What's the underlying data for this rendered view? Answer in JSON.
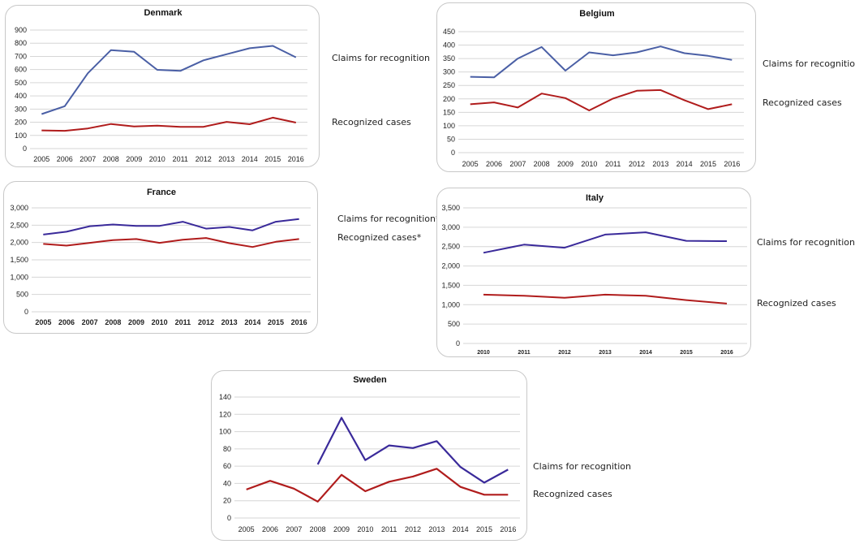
{
  "chart_data": [
    {
      "type": "line",
      "title": "Denmark",
      "x": [
        "2005",
        "2006",
        "2007",
        "2008",
        "2009",
        "2010",
        "2011",
        "2012",
        "2013",
        "2014",
        "2015",
        "2016"
      ],
      "ylim": [
        0,
        900
      ],
      "yticks": [
        "0",
        "100",
        "200",
        "300",
        "400",
        "500",
        "600",
        "700",
        "800",
        "900"
      ],
      "grid": true,
      "series": [
        {
          "name": "Claims for recognition",
          "color": "#4a5fa5",
          "values": [
            262,
            322,
            572,
            748,
            735,
            598,
            590,
            670,
            716,
            762,
            780,
            693
          ]
        },
        {
          "name": "Recognized cases",
          "color": "#b01c1c",
          "values": [
            138,
            135,
            153,
            187,
            168,
            174,
            165,
            165,
            203,
            185,
            235,
            197
          ]
        }
      ]
    },
    {
      "type": "line",
      "title": "Belgium",
      "x": [
        "2005",
        "2006",
        "2007",
        "2008",
        "2009",
        "2010",
        "2011",
        "2012",
        "2013",
        "2014",
        "2015",
        "2016"
      ],
      "ylim": [
        0,
        450
      ],
      "yticks": [
        "0",
        "50",
        "100",
        "150",
        "200",
        "250",
        "300",
        "350",
        "400",
        "450"
      ],
      "grid": true,
      "series": [
        {
          "name": "Claims for recognition",
          "color": "#4a5fa5",
          "values": [
            282,
            280,
            350,
            393,
            305,
            373,
            362,
            373,
            395,
            370,
            360,
            345
          ]
        },
        {
          "name": "Recognized cases",
          "color": "#b01c1c",
          "values": [
            180,
            187,
            168,
            220,
            203,
            157,
            201,
            230,
            233,
            195,
            162,
            180
          ]
        }
      ]
    },
    {
      "type": "line",
      "title": "France",
      "x": [
        "2005",
        "2006",
        "2007",
        "2008",
        "2009",
        "2010",
        "2011",
        "2012",
        "2013",
        "2014",
        "2015",
        "2016"
      ],
      "ylim": [
        0,
        3000
      ],
      "yticks": [
        "0",
        "500",
        "1,000",
        "1,500",
        "2,000",
        "2,500",
        "3,000"
      ],
      "grid": true,
      "series": [
        {
          "name": "Claims for recognition*",
          "color": "#3a2a9a",
          "values": [
            2230,
            2310,
            2470,
            2520,
            2480,
            2480,
            2600,
            2400,
            2450,
            2350,
            2600,
            2680
          ]
        },
        {
          "name": "Recognized cases*",
          "color": "#b01c1c",
          "values": [
            1960,
            1910,
            1990,
            2070,
            2100,
            1990,
            2080,
            2130,
            1980,
            1870,
            2020,
            2100
          ]
        }
      ]
    },
    {
      "type": "line",
      "title": "Italy",
      "x": [
        "2010",
        "2011",
        "2012",
        "2013",
        "2014",
        "2015",
        "2016"
      ],
      "ylim": [
        0,
        3500
      ],
      "yticks": [
        "0",
        "500",
        "1,000",
        "1,500",
        "2,000",
        "2,500",
        "3,000",
        "3,500"
      ],
      "grid": true,
      "series": [
        {
          "name": "Claims for recognition",
          "color": "#3a2a9a",
          "values": [
            2340,
            2550,
            2470,
            2810,
            2870,
            2650,
            2640
          ]
        },
        {
          "name": "Recognized cases",
          "color": "#b01c1c",
          "values": [
            1260,
            1230,
            1180,
            1260,
            1230,
            1120,
            1030
          ]
        }
      ]
    },
    {
      "type": "line",
      "title": "Sweden",
      "x": [
        "2005",
        "2006",
        "2007",
        "2008",
        "2009",
        "2010",
        "2011",
        "2012",
        "2013",
        "2014",
        "2015",
        "2016"
      ],
      "ylim": [
        0,
        140
      ],
      "yticks": [
        "0",
        "20",
        "40",
        "60",
        "80",
        "100",
        "120",
        "140"
      ],
      "grid": true,
      "series": [
        {
          "name": "Claims for recognition",
          "color": "#3a2a9a",
          "values": [
            null,
            null,
            null,
            62,
            116,
            67,
            84,
            81,
            89,
            59,
            41,
            56
          ]
        },
        {
          "name": "Recognized cases",
          "color": "#b01c1c",
          "values": [
            33,
            43,
            34,
            19,
            50,
            31,
            42,
            48,
            57,
            36,
            27,
            27
          ]
        }
      ]
    }
  ]
}
